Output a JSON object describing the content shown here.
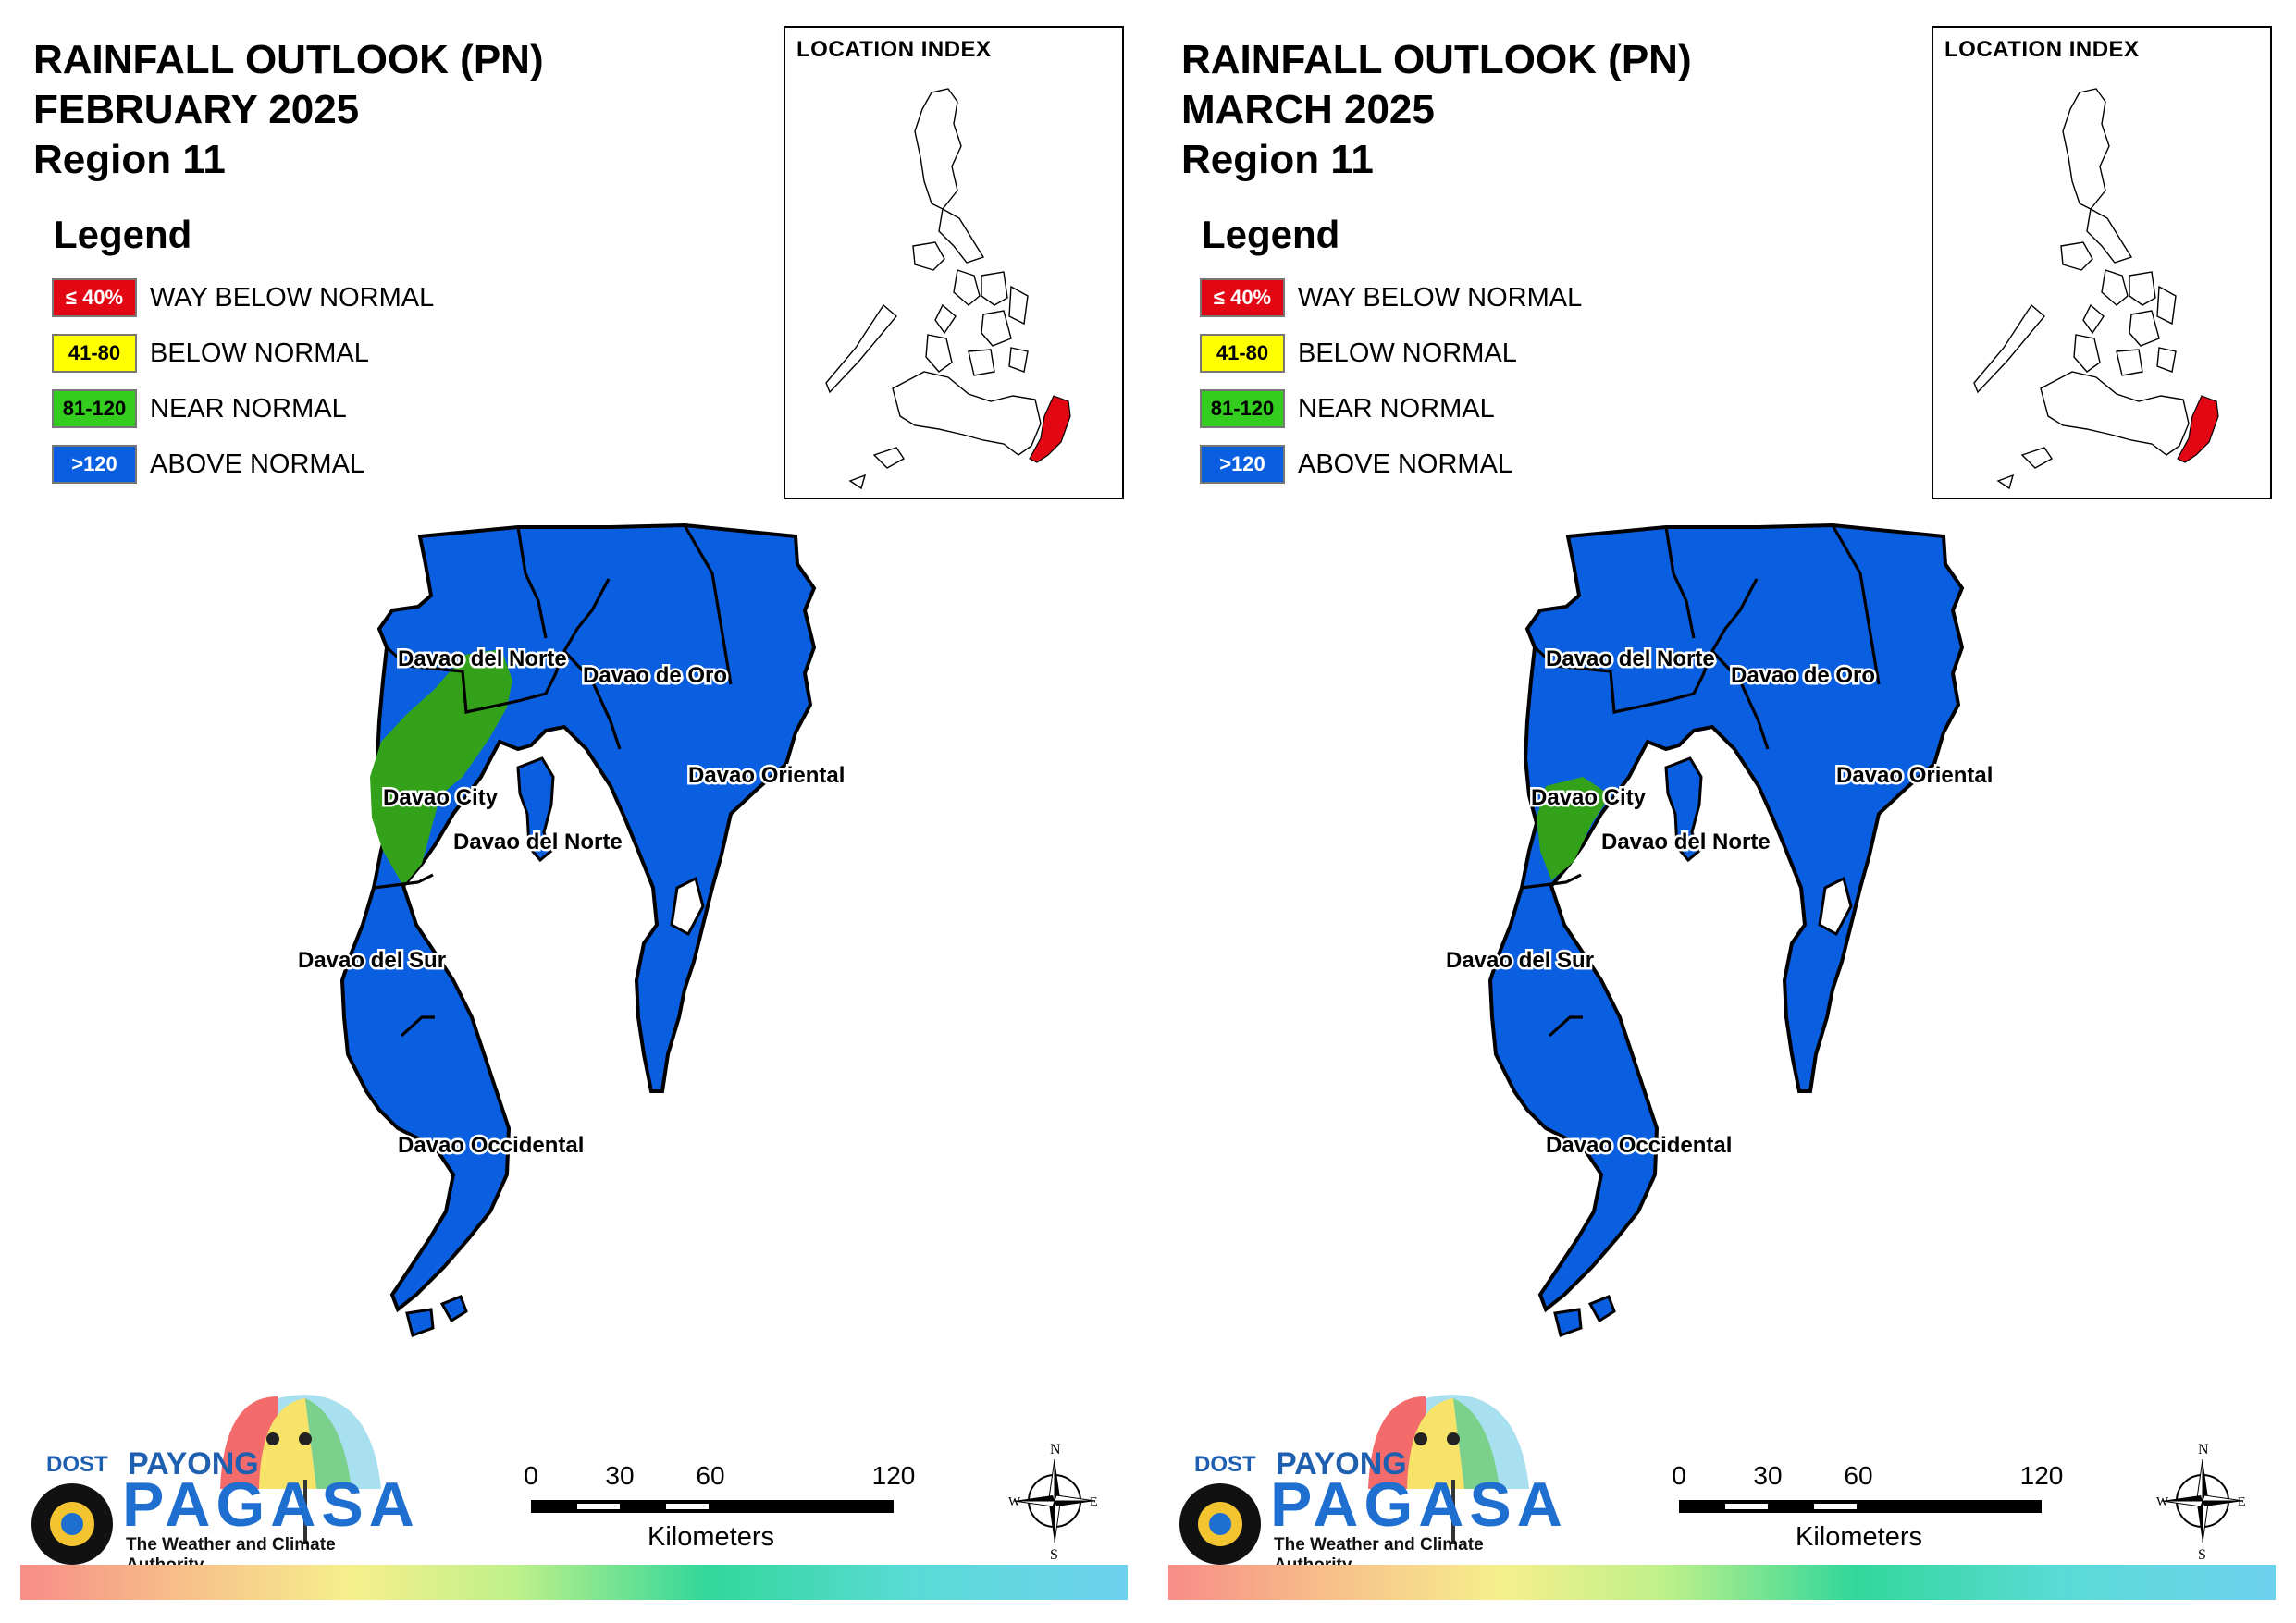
{
  "panels": [
    {
      "title": [
        "RAINFALL OUTLOOK (PN)",
        "FEBRUARY 2025",
        "Region 11"
      ],
      "near_normal_zone": "large"
    },
    {
      "title": [
        "RAINFALL OUTLOOK (PN)",
        "MARCH 2025",
        "Region 11"
      ],
      "near_normal_zone": "small"
    }
  ],
  "legend": {
    "heading": "Legend",
    "items": [
      {
        "swatch": "≤ 40%",
        "label": "WAY BELOW NORMAL",
        "color": "#e30613",
        "text_color": "#ffffff"
      },
      {
        "swatch": "41-80",
        "label": "BELOW NORMAL",
        "color": "#ffff00",
        "text_color": "#000000"
      },
      {
        "swatch": "81-120",
        "label": "NEAR NORMAL",
        "color": "#33cc1f",
        "text_color": "#000000"
      },
      {
        "swatch": ">120",
        "label": "ABOVE NORMAL",
        "color": "#0a5fe0",
        "text_color": "#ffffff"
      }
    ]
  },
  "location_index": {
    "title": "LOCATION INDEX",
    "highlight_color": "#e30613"
  },
  "places": {
    "davao_del_norte_top": "Davao del Norte",
    "davao_de_oro": "Davao de Oro",
    "davao_oriental": "Davao Oriental",
    "davao_city": "Davao City",
    "davao_del_norte_low": "Davao del Norte",
    "davao_del_sur": "Davao del Sur",
    "davao_occidental": "Davao Occidental"
  },
  "map_colors": {
    "above_normal": "#0a5fe0",
    "near_normal": "#33a21a"
  },
  "scale_bar": {
    "ticks": [
      "0",
      "30",
      "60",
      "120"
    ],
    "unit": "Kilometers"
  },
  "compass": {
    "n": "N",
    "s": "S",
    "e": "E",
    "w": "W"
  },
  "logo": {
    "dost": "DOST",
    "payong": "PAYONG",
    "pagasa": "PAGASA",
    "tagline": "The Weather and Climate Authority"
  }
}
